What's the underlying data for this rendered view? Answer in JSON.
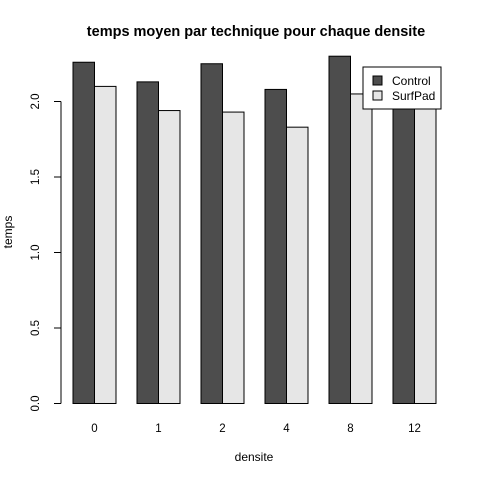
{
  "chart_data": {
    "type": "bar",
    "title": "temps moyen par technique pour chaque densite",
    "xlabel": "densite",
    "ylabel": "temps",
    "categories": [
      "0",
      "1",
      "2",
      "4",
      "8",
      "12"
    ],
    "series": [
      {
        "name": "Control",
        "values": [
          2.26,
          2.13,
          2.25,
          2.08,
          2.3,
          2.06
        ],
        "color": "#4d4d4d"
      },
      {
        "name": "SurfPad",
        "values": [
          2.1,
          1.94,
          1.93,
          1.83,
          2.05,
          2.1
        ],
        "color": "#e6e6e6"
      }
    ],
    "ylim": [
      0,
      2.35
    ],
    "yticks": [
      "0.0",
      "0.5",
      "1.0",
      "1.5",
      "2.0"
    ],
    "grid": false,
    "legend_position": "top-right"
  }
}
